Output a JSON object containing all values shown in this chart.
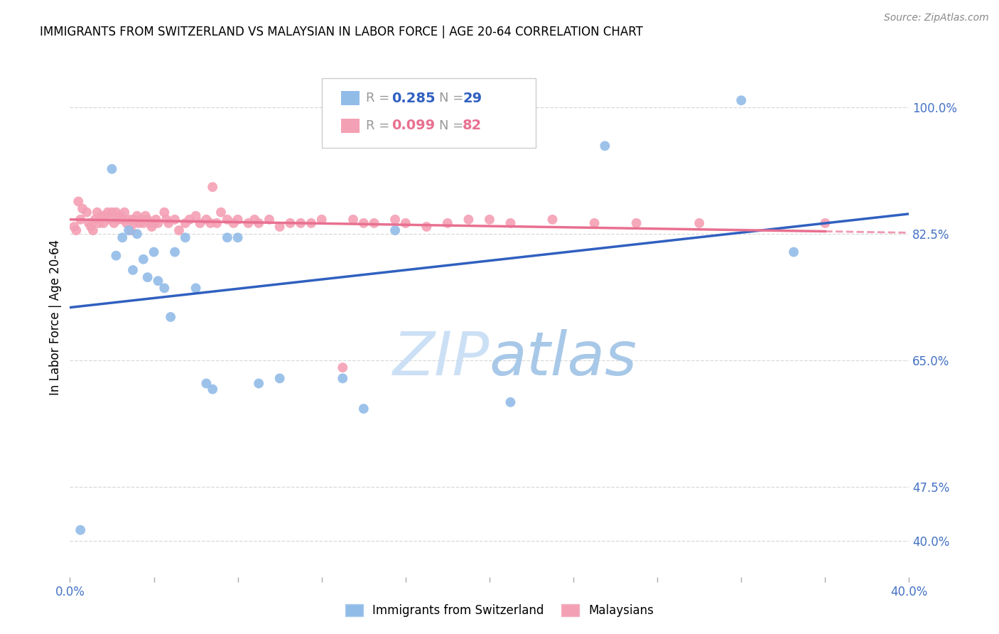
{
  "title": "IMMIGRANTS FROM SWITZERLAND VS MALAYSIAN IN LABOR FORCE | AGE 20-64 CORRELATION CHART",
  "source": "Source: ZipAtlas.com",
  "ylabel": "In Labor Force | Age 20-64",
  "r_swiss": 0.285,
  "n_swiss": 29,
  "r_malay": 0.099,
  "n_malay": 82,
  "x_min": 0.0,
  "x_max": 0.4,
  "y_min": 0.35,
  "y_max": 1.07,
  "ytick_positions": [
    0.4,
    0.475,
    0.65,
    0.825,
    1.0
  ],
  "ytick_labels": [
    "40.0%",
    "47.5%",
    "65.0%",
    "82.5%",
    "100.0%"
  ],
  "xtick_positions": [
    0.0,
    0.04,
    0.08,
    0.12,
    0.16,
    0.2,
    0.24,
    0.28,
    0.32,
    0.36,
    0.4
  ],
  "xtick_labels": [
    "0.0%",
    "",
    "",
    "",
    "",
    "",
    "",
    "",
    "",
    "",
    "40.0%"
  ],
  "color_swiss": "#92bce8",
  "color_malay": "#f4a0b4",
  "line_swiss": "#3060c0",
  "line_malay": "#e87090",
  "background_color": "#ffffff",
  "grid_color": "#d8d8d8",
  "swiss_x": [
    0.005,
    0.02,
    0.022,
    0.025,
    0.028,
    0.03,
    0.032,
    0.035,
    0.037,
    0.04,
    0.042,
    0.045,
    0.048,
    0.05,
    0.055,
    0.06,
    0.065,
    0.068,
    0.075,
    0.08,
    0.09,
    0.1,
    0.13,
    0.14,
    0.155,
    0.21,
    0.255,
    0.32,
    0.345
  ],
  "swiss_y": [
    0.415,
    0.915,
    0.795,
    0.82,
    0.83,
    0.775,
    0.825,
    0.79,
    0.765,
    0.8,
    0.76,
    0.75,
    0.71,
    0.8,
    0.82,
    0.75,
    0.618,
    0.61,
    0.82,
    0.82,
    0.618,
    0.625,
    0.625,
    0.583,
    0.83,
    0.592,
    0.947,
    1.01,
    0.8
  ],
  "malay_x": [
    0.002,
    0.003,
    0.004,
    0.005,
    0.006,
    0.008,
    0.009,
    0.01,
    0.011,
    0.012,
    0.013,
    0.014,
    0.015,
    0.016,
    0.017,
    0.018,
    0.019,
    0.02,
    0.021,
    0.022,
    0.023,
    0.024,
    0.025,
    0.026,
    0.027,
    0.028,
    0.029,
    0.03,
    0.031,
    0.032,
    0.033,
    0.034,
    0.035,
    0.036,
    0.037,
    0.038,
    0.039,
    0.04,
    0.041,
    0.042,
    0.045,
    0.046,
    0.047,
    0.05,
    0.052,
    0.055,
    0.057,
    0.06,
    0.062,
    0.065,
    0.067,
    0.068,
    0.07,
    0.072,
    0.075,
    0.078,
    0.08,
    0.085,
    0.088,
    0.09,
    0.095,
    0.1,
    0.105,
    0.11,
    0.115,
    0.12,
    0.13,
    0.135,
    0.14,
    0.145,
    0.155,
    0.16,
    0.17,
    0.18,
    0.19,
    0.2,
    0.21,
    0.23,
    0.25,
    0.27,
    0.3,
    0.36
  ],
  "malay_y": [
    0.835,
    0.83,
    0.87,
    0.845,
    0.86,
    0.855,
    0.84,
    0.835,
    0.83,
    0.845,
    0.855,
    0.84,
    0.85,
    0.84,
    0.85,
    0.855,
    0.845,
    0.855,
    0.84,
    0.855,
    0.845,
    0.85,
    0.845,
    0.855,
    0.84,
    0.845,
    0.83,
    0.845,
    0.84,
    0.85,
    0.84,
    0.845,
    0.84,
    0.85,
    0.845,
    0.84,
    0.835,
    0.84,
    0.845,
    0.84,
    0.855,
    0.845,
    0.84,
    0.845,
    0.83,
    0.84,
    0.845,
    0.85,
    0.84,
    0.845,
    0.84,
    0.89,
    0.84,
    0.855,
    0.845,
    0.84,
    0.845,
    0.84,
    0.845,
    0.84,
    0.845,
    0.835,
    0.84,
    0.84,
    0.84,
    0.845,
    0.64,
    0.845,
    0.84,
    0.84,
    0.845,
    0.84,
    0.835,
    0.84,
    0.845,
    0.845,
    0.84,
    0.845,
    0.84,
    0.84,
    0.84,
    0.84
  ],
  "legend_color_swiss": "#92bce8",
  "legend_color_malay": "#f4a0b4",
  "axis_label_color": "#4472c4",
  "title_color": "#000000",
  "source_color": "#888888",
  "watermark_color": "#cce0f5",
  "legend_swiss_text_color": "#3060c0",
  "legend_malay_text_color": "#e87090"
}
